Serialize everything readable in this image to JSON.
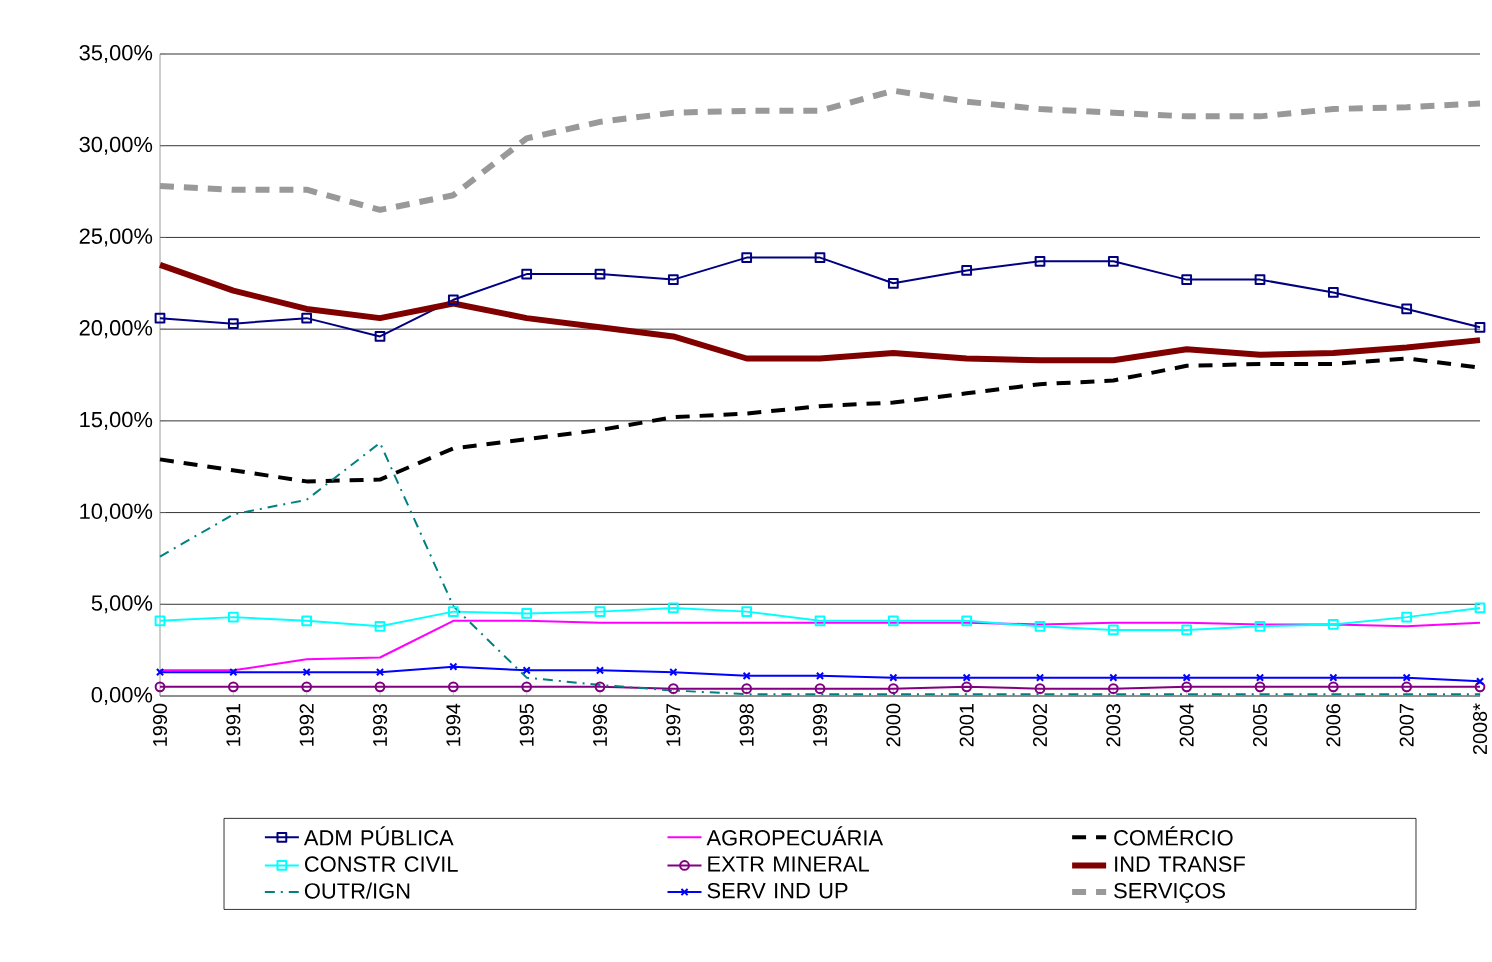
{
  "chart_data": {
    "type": "line",
    "categories": [
      "1990",
      "1991",
      "1992",
      "1993",
      "1994",
      "1995",
      "1996",
      "1997",
      "1998",
      "1999",
      "2000",
      "2001",
      "2002",
      "2003",
      "2004",
      "2005",
      "2006",
      "2007",
      "2008*"
    ],
    "series": [
      {
        "name": "ADM PÚBLICA",
        "color": "#000080",
        "marker": "square",
        "line_style": "solid",
        "values": [
          20.6,
          20.3,
          20.6,
          19.6,
          21.6,
          23.0,
          23.0,
          22.7,
          23.9,
          23.9,
          22.5,
          23.2,
          23.7,
          23.7,
          22.7,
          22.7,
          22.0,
          21.1,
          20.1
        ]
      },
      {
        "name": "AGROPECUÁRIA",
        "color": "#ff00ff",
        "marker": "none",
        "line_style": "solid",
        "values": [
          1.4,
          1.4,
          2.0,
          2.1,
          4.1,
          4.1,
          4.0,
          4.0,
          4.0,
          4.0,
          4.0,
          4.0,
          3.9,
          4.0,
          4.0,
          3.9,
          3.9,
          3.8,
          4.0
        ]
      },
      {
        "name": "COMÉRCIO",
        "color": "#000000",
        "marker": "none",
        "line_style": "dashed",
        "values": [
          12.9,
          12.3,
          11.7,
          11.8,
          13.5,
          14.0,
          14.5,
          15.2,
          15.4,
          15.8,
          16.0,
          16.5,
          17.0,
          17.2,
          18.0,
          18.1,
          18.1,
          18.4,
          17.9
        ]
      },
      {
        "name": "CONSTR CIVIL",
        "color": "#00ffff",
        "marker": "square",
        "line_style": "solid",
        "values": [
          4.1,
          4.3,
          4.1,
          3.8,
          4.6,
          4.5,
          4.6,
          4.8,
          4.6,
          4.1,
          4.1,
          4.1,
          3.8,
          3.6,
          3.6,
          3.8,
          3.9,
          4.3,
          4.8
        ]
      },
      {
        "name": "EXTR MINERAL",
        "color": "#800080",
        "marker": "circle",
        "line_style": "solid",
        "values": [
          0.5,
          0.5,
          0.5,
          0.5,
          0.5,
          0.5,
          0.5,
          0.4,
          0.4,
          0.4,
          0.4,
          0.5,
          0.4,
          0.4,
          0.5,
          0.5,
          0.5,
          0.5,
          0.5
        ]
      },
      {
        "name": "IND TRANSF",
        "color": "#800000",
        "marker": "none",
        "line_style": "solid",
        "values": [
          23.5,
          22.1,
          21.1,
          20.6,
          21.4,
          20.6,
          20.1,
          19.6,
          18.4,
          18.4,
          18.7,
          18.4,
          18.3,
          18.3,
          18.9,
          18.6,
          18.7,
          19.0,
          19.4
        ]
      },
      {
        "name": "OUTR/IGN",
        "color": "#008080",
        "marker": "none",
        "line_style": "dashdotted",
        "values": [
          7.6,
          9.9,
          10.7,
          13.8,
          4.9,
          1.0,
          0.6,
          0.3,
          0.1,
          0.1,
          0.1,
          0.1,
          0.1,
          0.1,
          0.1,
          0.1,
          0.1,
          0.1,
          0.1
        ]
      },
      {
        "name": "SERV IND UP",
        "color": "#0000ff",
        "marker": "cross",
        "line_style": "solid",
        "values": [
          1.3,
          1.3,
          1.3,
          1.3,
          1.6,
          1.4,
          1.4,
          1.3,
          1.1,
          1.1,
          1.0,
          1.0,
          1.0,
          1.0,
          1.0,
          1.0,
          1.0,
          1.0,
          0.8
        ]
      },
      {
        "name": "SERVIÇOS",
        "color": "#999999",
        "marker": "none",
        "line_style": "dashed",
        "values": [
          27.8,
          27.6,
          27.6,
          26.5,
          27.3,
          30.4,
          31.3,
          31.8,
          31.9,
          31.9,
          33.0,
          32.4,
          32.0,
          31.8,
          31.6,
          31.6,
          32.0,
          32.1,
          32.3
        ]
      }
    ],
    "ylim": [
      0,
      35
    ],
    "yticks": [
      {
        "value": 0,
        "label": "0,00%"
      },
      {
        "value": 5,
        "label": "5,00%"
      },
      {
        "value": 10,
        "label": "10,00%"
      },
      {
        "value": 15,
        "label": "15,00%"
      },
      {
        "value": 20,
        "label": "20,00%"
      },
      {
        "value": 25,
        "label": "25,00%"
      },
      {
        "value": 30,
        "label": "30,00%"
      },
      {
        "value": 35,
        "label": "35,00%"
      }
    ],
    "grid": "y",
    "legend": "bottom"
  }
}
